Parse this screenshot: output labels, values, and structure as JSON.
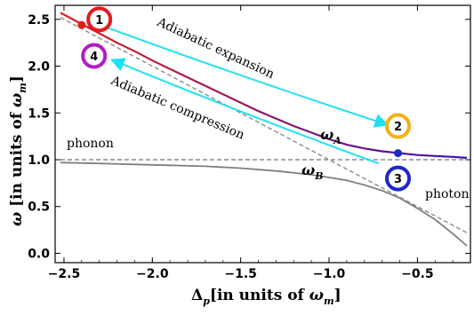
{
  "chart_data": {
    "type": "line",
    "xlabel": "Δ_p[in units of ω_m]",
    "ylabel": "ω [in units of ω_m]",
    "xlabel_parts": {
      "main": "Δ",
      "sub": "p",
      "rest": "[in units of ",
      "omega": "ω",
      "omega_sub": "m",
      "close": "]"
    },
    "ylabel_parts": {
      "main": "ω",
      "rest": " [in units of ",
      "omega": "ω",
      "omega_sub": "m",
      "close": "]"
    },
    "xlim": [
      -2.55,
      -0.2
    ],
    "ylim": [
      -0.1,
      2.65
    ],
    "xticks": [
      -2.5,
      -2.0,
      -1.5,
      -1.0,
      -0.5
    ],
    "xtick_labels": [
      "−2.5",
      "−2.0",
      "−1.5",
      "−1.0",
      "−0.5"
    ],
    "yticks": [
      0.0,
      0.5,
      1.0,
      1.5,
      2.0,
      2.5
    ],
    "ytick_labels": [
      "0.0",
      "0.5",
      "1.0",
      "1.5",
      "2.0",
      "2.5"
    ],
    "grid": false,
    "series": [
      {
        "name": "ω_A",
        "label_parts": {
          "main": "ω",
          "sub": "A"
        },
        "x": [
          -2.52,
          -2.4,
          -2.3,
          -2.2,
          -2.1,
          -2.0,
          -1.9,
          -1.8,
          -1.7,
          -1.6,
          -1.5,
          -1.4,
          -1.3,
          -1.2,
          -1.1,
          -1.0,
          -0.9,
          -0.8,
          -0.7,
          -0.6,
          -0.5,
          -0.4,
          -0.3,
          -0.22
        ],
        "y": [
          2.57,
          2.45,
          2.35,
          2.25,
          2.16,
          2.06,
          1.97,
          1.88,
          1.79,
          1.7,
          1.61,
          1.52,
          1.44,
          1.36,
          1.29,
          1.22,
          1.16,
          1.12,
          1.09,
          1.07,
          1.05,
          1.04,
          1.03,
          1.02
        ],
        "colors": [
          "#e0201f",
          "#3b0fae"
        ]
      },
      {
        "name": "ω_B",
        "label_parts": {
          "main": "ω",
          "sub": "B"
        },
        "x": [
          -2.52,
          -2.3,
          -2.1,
          -1.9,
          -1.7,
          -1.5,
          -1.3,
          -1.1,
          -0.9,
          -0.8,
          -0.7,
          -0.6,
          -0.5,
          -0.4,
          -0.3,
          -0.22
        ],
        "y": [
          0.97,
          0.96,
          0.95,
          0.94,
          0.93,
          0.91,
          0.88,
          0.84,
          0.78,
          0.73,
          0.67,
          0.59,
          0.48,
          0.36,
          0.21,
          0.08
        ],
        "color": "#7f7f7f"
      },
      {
        "name": "photon",
        "x": [
          -2.52,
          -0.22
        ],
        "y": [
          2.52,
          0.22
        ],
        "color": "#8c8c8c",
        "dashed": true
      },
      {
        "name": "phonon",
        "x": [
          -2.52,
          -0.22
        ],
        "y": [
          1.0,
          1.0
        ],
        "color": "#8c8c8c",
        "dashed": true
      }
    ],
    "text_labels": {
      "phonon": "phonon",
      "photon": "photon",
      "expansion": "Adiabatic expansion",
      "compression": "Adiabatic compression"
    },
    "points": [
      {
        "x": -2.4,
        "y": 2.44,
        "color": "#e0201f"
      },
      {
        "x": -0.61,
        "y": 1.07,
        "color": "#1f26c9"
      }
    ],
    "arrows": [
      {
        "name": "expansion",
        "color": "#1fe0f0",
        "from": [
          -2.28,
          2.43
        ],
        "via": [
          -1.55,
          1.92
        ],
        "to": [
          -0.68,
          1.38
        ]
      },
      {
        "name": "compression",
        "color": "#1fe0f0",
        "from": [
          -0.72,
          0.96
        ],
        "via": [
          -1.5,
          1.5
        ],
        "to": [
          -2.22,
          2.06
        ]
      }
    ],
    "markers": [
      {
        "label": "1",
        "x": -2.3,
        "y": 2.5,
        "color": "#e8191e"
      },
      {
        "label": "2",
        "x": -0.61,
        "y": 1.36,
        "color": "#f4b015"
      },
      {
        "label": "3",
        "x": -0.61,
        "y": 0.8,
        "color": "#1f26c9"
      },
      {
        "label": "4",
        "x": -2.33,
        "y": 2.11,
        "color": "#b01ec2"
      }
    ]
  }
}
